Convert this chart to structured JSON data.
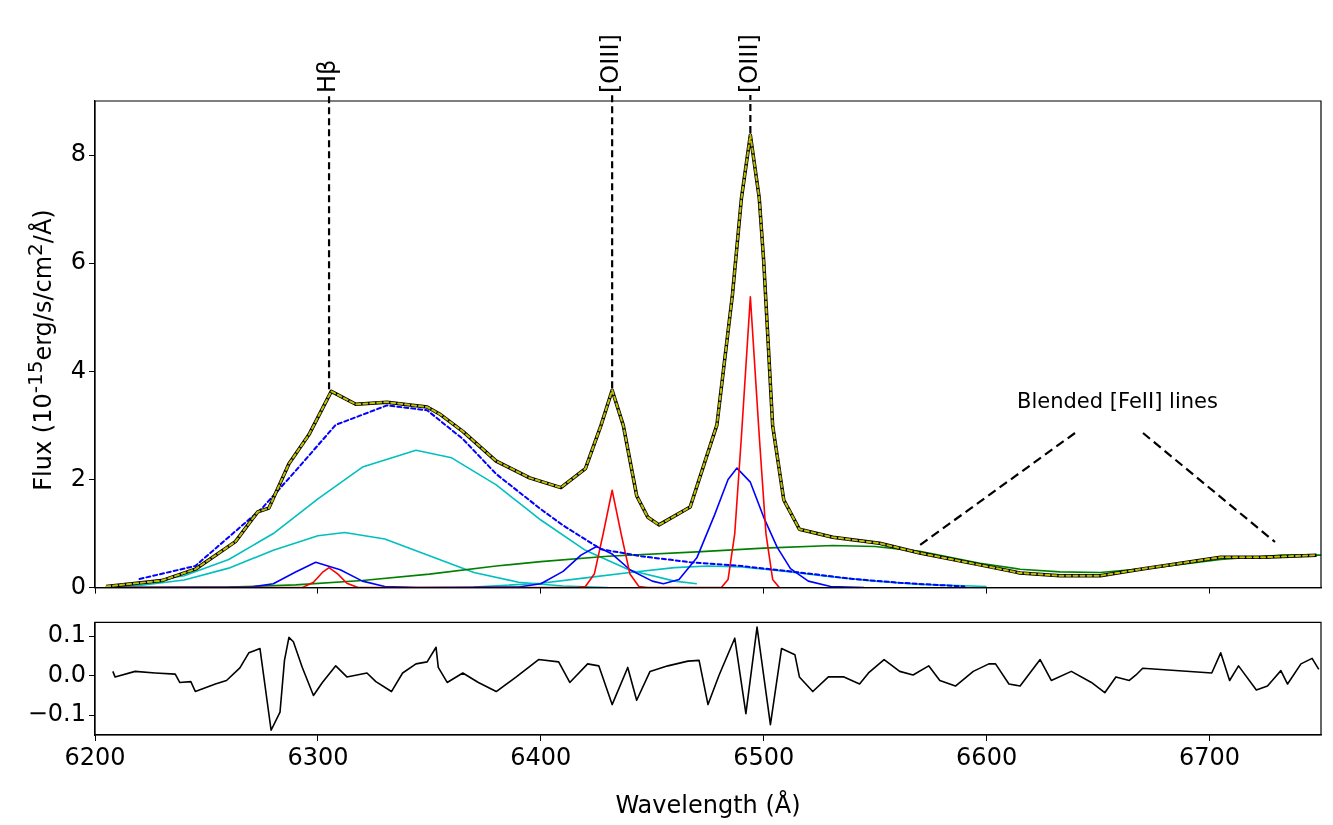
{
  "chart_data": [
    {
      "type": "line",
      "ylabel": "Flux (10$^{-15}$erg/s/cm$^{2}$/Å)",
      "xlim": [
        6200,
        6750
      ],
      "xticks": [
        6200,
        6300,
        6400,
        6500,
        6600,
        6700
      ],
      "ylim": [
        0,
        9
      ],
      "yticks": [
        0,
        2,
        4,
        6,
        8
      ],
      "tick_labels": "y",
      "grid": false,
      "legend": false,
      "marker": "none",
      "annotations": [
        {
          "text": "Hβ",
          "x": 6305,
          "y": 3.63
        },
        {
          "text": "[OIII]",
          "x": 6432,
          "y": 3.65
        },
        {
          "text": "[OIII]",
          "x": 6494,
          "y": 8.37
        },
        "Blended [FeII] lines"
      ],
      "series": [
        {
          "color": "#00bfbf",
          "x": [
            6205,
            6220,
            6240,
            6260,
            6280,
            6300,
            6320,
            6344,
            6360,
            6380,
            6400,
            6420,
            6440,
            6460,
            6470
          ],
          "values": [
            0.03,
            0.08,
            0.22,
            0.52,
            1.0,
            1.64,
            2.23,
            2.54,
            2.4,
            1.9,
            1.25,
            0.69,
            0.32,
            0.12,
            0.07
          ]
        },
        {
          "color": "#00bfbf",
          "x": [
            6205,
            6220,
            6240,
            6260,
            6280,
            6300,
            6312,
            6330,
            6350,
            6370,
            6390,
            6410,
            6430
          ],
          "values": [
            0.01,
            0.04,
            0.14,
            0.36,
            0.69,
            0.96,
            1.02,
            0.9,
            0.59,
            0.28,
            0.1,
            0.03,
            0
          ]
        },
        {
          "color": "#00bfbf",
          "x": [
            6370,
            6400,
            6420,
            6440,
            6460,
            6475,
            6490,
            6510,
            6530,
            6550,
            6570,
            6600
          ],
          "values": [
            0.01,
            0.08,
            0.18,
            0.28,
            0.37,
            0.4,
            0.38,
            0.3,
            0.2,
            0.12,
            0.06,
            0.02
          ]
        },
        {
          "color": "#008000",
          "x": [
            6210,
            6260,
            6290,
            6320,
            6350,
            6380,
            6400,
            6430,
            6470,
            6500,
            6531,
            6550,
            6570,
            6597,
            6615,
            6633,
            6651,
            6678,
            6705,
            6732,
            6750
          ],
          "values": [
            0,
            0.01,
            0.05,
            0.13,
            0.25,
            0.4,
            0.48,
            0.58,
            0.66,
            0.73,
            0.78,
            0.76,
            0.67,
            0.45,
            0.34,
            0.29,
            0.28,
            0.38,
            0.52,
            0.6,
            0.6
          ]
        },
        {
          "color": "#0000ff",
          "x": [
            6210,
            6270,
            6280,
            6290,
            6299,
            6310,
            6320,
            6330,
            6345,
            6390,
            6400,
            6410,
            6418,
            6425,
            6432,
            6440,
            6450,
            6455,
            6462,
            6470,
            6478,
            6484,
            6488,
            6494,
            6500,
            6506,
            6512,
            6520,
            6530,
            6545
          ],
          "values": [
            0,
            0.01,
            0.07,
            0.29,
            0.47,
            0.33,
            0.12,
            0.02,
            0,
            0.01,
            0.07,
            0.3,
            0.6,
            0.76,
            0.62,
            0.33,
            0.12,
            0.07,
            0.15,
            0.55,
            1.35,
            2.0,
            2.21,
            1.95,
            1.3,
            0.75,
            0.35,
            0.12,
            0.02,
            0
          ]
        },
        {
          "color": "#ff0000",
          "x": [
            6210,
            6293,
            6298,
            6302,
            6305,
            6309,
            6313,
            6318,
            6416,
            6420,
            6424,
            6428,
            6432,
            6436,
            6440,
            6444,
            6448,
            6481,
            6484,
            6487,
            6490,
            6494,
            6498,
            6501,
            6504,
            6507
          ],
          "values": [
            0,
            0,
            0.1,
            0.28,
            0.37,
            0.25,
            0.08,
            0,
            0,
            0.02,
            0.25,
            1.0,
            1.8,
            1.0,
            0.25,
            0.02,
            0,
            0,
            0.15,
            1.0,
            2.8,
            5.38,
            2.8,
            1.0,
            0.15,
            0
          ]
        },
        {
          "color": "#0000ff",
          "line_style": "dashed",
          "x": [
            6220,
            6245,
            6275,
            6290,
            6308,
            6331,
            6349,
            6365,
            6380,
            6400,
            6410,
            6427,
            6445,
            6467,
            6490,
            6516,
            6540,
            6561,
            6590
          ],
          "values": [
            0.16,
            0.4,
            1.47,
            2.16,
            3.01,
            3.37,
            3.28,
            2.75,
            2.1,
            1.45,
            1.15,
            0.71,
            0.58,
            0.47,
            0.4,
            0.28,
            0.16,
            0.09,
            0.02
          ]
        },
        {
          "color": "#000000",
          "x": [
            6205,
            6230,
            6245,
            6263,
            6273,
            6278,
            6287,
            6296,
            6306,
            6317,
            6331,
            6349,
            6355,
            6365,
            6380,
            6395,
            6409,
            6420,
            6427,
            6432,
            6437,
            6443,
            6448,
            6453,
            6467,
            6479,
            6486,
            6490,
            6494,
            6498,
            6500,
            6504,
            6509,
            6516,
            6531,
            6552,
            6570,
            6597,
            6615,
            6633,
            6651,
            6669,
            6687,
            6705,
            6723,
            6748
          ],
          "values": [
            0.02,
            0.13,
            0.34,
            0.85,
            1.4,
            1.47,
            2.29,
            2.83,
            3.63,
            3.39,
            3.43,
            3.34,
            3.2,
            2.89,
            2.34,
            2.03,
            1.85,
            2.2,
            3.0,
            3.65,
            3.0,
            1.7,
            1.3,
            1.16,
            1.49,
            3.01,
            5.43,
            7.2,
            8.37,
            7.2,
            6.03,
            3.0,
            1.62,
            1.08,
            0.93,
            0.82,
            0.64,
            0.42,
            0.27,
            0.22,
            0.22,
            0.34,
            0.45,
            0.56,
            0.56,
            0.6
          ]
        },
        {
          "color": "#bfbf00",
          "line_style": "dashed",
          "x": [
            6205,
            6230,
            6245,
            6263,
            6273,
            6278,
            6287,
            6296,
            6306,
            6317,
            6331,
            6349,
            6355,
            6365,
            6380,
            6395,
            6409,
            6420,
            6427,
            6432,
            6437,
            6443,
            6448,
            6453,
            6467,
            6479,
            6486,
            6490,
            6494,
            6498,
            6500,
            6504,
            6509,
            6516,
            6531,
            6552,
            6570,
            6597,
            6615,
            6633,
            6651,
            6669,
            6687,
            6705,
            6723,
            6748
          ],
          "values": [
            0.02,
            0.13,
            0.34,
            0.85,
            1.4,
            1.47,
            2.29,
            2.83,
            3.63,
            3.39,
            3.43,
            3.34,
            3.2,
            2.89,
            2.34,
            2.03,
            1.85,
            2.2,
            3.0,
            3.65,
            3.0,
            1.7,
            1.3,
            1.16,
            1.49,
            3.01,
            5.43,
            7.2,
            8.37,
            7.2,
            6.03,
            3.0,
            1.62,
            1.08,
            0.93,
            0.82,
            0.64,
            0.42,
            0.27,
            0.22,
            0.22,
            0.34,
            0.45,
            0.56,
            0.56,
            0.6
          ]
        }
      ]
    },
    {
      "type": "line",
      "xlabel": "Wavelength (Å)",
      "xlim": [
        6200,
        6750
      ],
      "xticks": [
        6200,
        6300,
        6400,
        6500,
        6600,
        6700
      ],
      "ylim": [
        -0.15,
        0.135
      ],
      "yticks": [
        {
          "value": -0.1,
          "label": "−0.1"
        },
        {
          "value": 0,
          "label": "0.0"
        },
        {
          "value": 0.1,
          "label": "0.1"
        }
      ],
      "grid": false,
      "legend": false,
      "marker": "none",
      "series": [
        {
          "color": "#000000",
          "x": [
            6208,
            6209,
            6218,
            6227,
            6236,
            6238,
            6243,
            6245,
            6254,
            6259,
            6265,
            6269,
            6274,
            6279,
            6283,
            6285,
            6287,
            6289,
            6293,
            6298,
            6302,
            6308,
            6313,
            6322,
            6326,
            6333,
            6338,
            6344,
            6349,
            6353,
            6354,
            6358,
            6365,
            6372,
            6380,
            6389,
            6399,
            6408,
            6413,
            6421,
            6426,
            6432,
            6439,
            6443,
            6449,
            6457,
            6466,
            6471,
            6475,
            6480,
            6487,
            6492,
            6497,
            6503,
            6508,
            6514,
            6516,
            6522,
            6529,
            6536,
            6543,
            6547,
            6554,
            6561,
            6567,
            6574,
            6579,
            6586,
            6594,
            6601,
            6604,
            6610,
            6615,
            6624,
            6629,
            6638,
            6647,
            6653,
            6658,
            6664,
            6667,
            6670,
            6701,
            6705,
            6709,
            6713,
            6721,
            6726,
            6732,
            6735,
            6741,
            6746,
            6749
          ],
          "values": [
            0.011,
            -0.003,
            0.011,
            0.007,
            0.004,
            -0.017,
            -0.015,
            -0.04,
            -0.021,
            -0.012,
            0.02,
            0.058,
            0.069,
            -0.138,
            -0.092,
            0.039,
            0.097,
            0.086,
            0.021,
            -0.05,
            -0.017,
            0.025,
            -0.003,
            0.007,
            -0.015,
            -0.04,
            0.007,
            0.03,
            0.035,
            0.072,
            0.021,
            -0.017,
            0.007,
            -0.017,
            -0.04,
            -0.003,
            0.041,
            0.035,
            -0.017,
            0.03,
            0.025,
            -0.073,
            0.021,
            -0.062,
            0.011,
            0.025,
            0.037,
            0.039,
            -0.073,
            0.002,
            0.095,
            -0.096,
            0.123,
            -0.124,
            0.069,
            0.053,
            -0.003,
            -0.04,
            -0.003,
            -0.003,
            -0.021,
            0.007,
            0.041,
            0.011,
            0.002,
            0.025,
            -0.012,
            -0.026,
            0.011,
            0.03,
            0.03,
            -0.021,
            -0.026,
            0.041,
            -0.012,
            0.011,
            -0.017,
            -0.043,
            -0.003,
            -0.012,
            0.002,
            0.019,
            0.007,
            0.058,
            -0.012,
            0.025,
            -0.036,
            -0.026,
            0.013,
            -0.021,
            0.03,
            0.044,
            0.016
          ]
        }
      ]
    }
  ]
}
